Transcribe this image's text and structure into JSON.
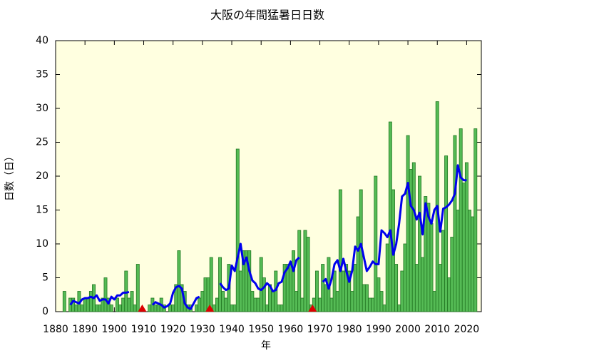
{
  "chart_data": {
    "type": "bar",
    "title": "大阪の年間猛暑日日数",
    "xlabel": "年",
    "ylabel": "日数（日）",
    "xlim": [
      1880,
      2025
    ],
    "ylim": [
      0,
      40
    ],
    "xticks": [
      1880,
      1890,
      1900,
      1910,
      1920,
      1930,
      1940,
      1950,
      1960,
      1970,
      1980,
      1990,
      2000,
      2010,
      2020
    ],
    "yticks": [
      0,
      5,
      10,
      15,
      20,
      25,
      30,
      35,
      40
    ],
    "background": "#ffffe0",
    "bars": {
      "color": "#55bb55",
      "edge": "#227722",
      "x": [
        1883,
        1884,
        1885,
        1886,
        1887,
        1888,
        1889,
        1890,
        1891,
        1892,
        1893,
        1894,
        1895,
        1896,
        1897,
        1898,
        1899,
        1900,
        1901,
        1902,
        1903,
        1904,
        1905,
        1906,
        1907,
        1908,
        1909,
        1910,
        1911,
        1912,
        1913,
        1914,
        1915,
        1916,
        1917,
        1918,
        1919,
        1920,
        1921,
        1922,
        1923,
        1924,
        1925,
        1926,
        1927,
        1928,
        1929,
        1930,
        1931,
        1932,
        1933,
        1934,
        1935,
        1936,
        1937,
        1938,
        1939,
        1940,
        1941,
        1942,
        1943,
        1944,
        1945,
        1946,
        1947,
        1948,
        1949,
        1950,
        1951,
        1952,
        1953,
        1954,
        1955,
        1956,
        1957,
        1958,
        1959,
        1960,
        1961,
        1962,
        1963,
        1964,
        1965,
        1966,
        1967,
        1968,
        1969,
        1970,
        1971,
        1972,
        1973,
        1974,
        1975,
        1976,
        1977,
        1978,
        1979,
        1980,
        1981,
        1982,
        1983,
        1984,
        1985,
        1986,
        1987,
        1988,
        1989,
        1990,
        1991,
        1992,
        1993,
        1994,
        1995,
        1996,
        1997,
        1998,
        1999,
        2000,
        2001,
        2002,
        2003,
        2004,
        2005,
        2006,
        2007,
        2008,
        2009,
        2010,
        2011,
        2012,
        2013,
        2014,
        2015,
        2016,
        2017,
        2018,
        2019,
        2020,
        2021,
        2022,
        2023
      ],
      "values": [
        3,
        0,
        2,
        2,
        1,
        3,
        1,
        2,
        2,
        3,
        4,
        1,
        1,
        2,
        5,
        2,
        1,
        0,
        2,
        1,
        2,
        6,
        2,
        3,
        1,
        7,
        0,
        0,
        0,
        1,
        2,
        1,
        1,
        2,
        1,
        0,
        1,
        1,
        4,
        9,
        4,
        3,
        1,
        1,
        0,
        1,
        2,
        3,
        5,
        5,
        8,
        1,
        2,
        8,
        3,
        2,
        7,
        1,
        1,
        24,
        6,
        9,
        9,
        9,
        3,
        2,
        2,
        8,
        5,
        1,
        4,
        3,
        6,
        1,
        1,
        7,
        7,
        7,
        9,
        3,
        12,
        2,
        12,
        11,
        1,
        2,
        6,
        2,
        7,
        4,
        8,
        2,
        6,
        3,
        18,
        6,
        7,
        6,
        3,
        7,
        14,
        18,
        4,
        4,
        2,
        2,
        20,
        5,
        3,
        1,
        10,
        28,
        18,
        7,
        1,
        6,
        10,
        26,
        21,
        22,
        7,
        20,
        8,
        17,
        16,
        13,
        3,
        31,
        7,
        12,
        23,
        5,
        11,
        26,
        15,
        27,
        19,
        22,
        15,
        14,
        27
      ]
    },
    "line": {
      "color": "#0000ee",
      "x": [
        1885,
        1886,
        1887,
        1888,
        1889,
        1890,
        1891,
        1892,
        1893,
        1894,
        1895,
        1896,
        1897,
        1898,
        1899,
        1900,
        1901,
        1902,
        1903,
        1904,
        1905,
        1906,
        1907,
        1908,
        1909,
        1910,
        1911,
        1912,
        1913,
        1914,
        1915,
        1916,
        1917,
        1918,
        1919,
        1920,
        1921,
        1922,
        1923,
        1924,
        1925,
        1926,
        1927,
        1928,
        1929,
        1930,
        1931,
        1932,
        1933,
        1934,
        1935,
        1936,
        1937,
        1938,
        1939,
        1940,
        1941,
        1942,
        1943,
        1944,
        1945,
        1946,
        1947,
        1948,
        1949,
        1950,
        1951,
        1952,
        1953,
        1954,
        1955,
        1956,
        1957,
        1958,
        1959,
        1960,
        1961,
        1962,
        1963,
        1964,
        1965,
        1966,
        1967,
        1968,
        1969,
        1970,
        1971,
        1972,
        1973,
        1974,
        1975,
        1976,
        1977,
        1978,
        1979,
        1980,
        1981,
        1982,
        1983,
        1984,
        1985,
        1986,
        1987,
        1988,
        1989,
        1990,
        1991,
        1992,
        1993,
        1994,
        1995,
        1996,
        1997,
        1998,
        1999,
        2000,
        2001,
        2002,
        2003,
        2004,
        2005,
        2006,
        2007,
        2008,
        2009,
        2010,
        2011,
        2012,
        2013,
        2014,
        2015,
        2016,
        2017,
        2018,
        2019,
        2020
      ],
      "values": [
        1.0,
        1.6,
        1.4,
        1.2,
        1.8,
        2.0,
        2.0,
        2.2,
        2.0,
        2.4,
        1.6,
        1.8,
        1.8,
        1.2,
        2.2,
        1.8,
        2.4,
        2.4,
        2.8,
        2.8,
        2.9,
        null,
        null,
        null,
        null,
        null,
        null,
        null,
        1.0,
        1.4,
        1.2,
        1.0,
        0.6,
        0.8,
        1.2,
        2.8,
        3.6,
        3.8,
        3.4,
        1.2,
        0.6,
        0.4,
        1.2,
        2.0,
        2.2,
        null,
        null,
        null,
        null,
        null,
        null,
        4.2,
        3.6,
        3.2,
        3.4,
        6.8,
        6.0,
        8.0,
        10.0,
        7.0,
        8.0,
        6.0,
        4.6,
        4.2,
        3.4,
        3.2,
        3.6,
        4.2,
        3.8,
        3.0,
        3.2,
        4.2,
        4.4,
        5.8,
        6.4,
        7.4,
        6.0,
        7.6,
        8.0,
        null,
        null,
        null,
        null,
        null,
        null,
        null,
        4.4,
        4.8,
        3.4,
        4.8,
        7.0,
        7.6,
        6.0,
        7.8,
        6.0,
        4.4,
        6.0,
        9.6,
        9.0,
        10.0,
        8.0,
        6.0,
        6.6,
        7.4,
        7.0,
        7.0,
        12.0,
        11.6,
        11.0,
        12.0,
        8.4,
        10.0,
        13.0,
        17.0,
        17.4,
        19.0,
        15.6,
        15.0,
        13.6,
        14.6,
        11.4,
        16.0,
        14.0,
        13.0,
        15.0,
        15.6,
        11.8,
        15.2,
        15.4,
        15.8,
        16.4,
        17.4,
        21.6,
        19.8,
        19.4,
        19.4
      ]
    },
    "markers": {
      "color": "#dd0000",
      "x": [
        1909.5,
        1932.5,
        1967.5
      ],
      "values": [
        0,
        0,
        0
      ]
    }
  }
}
